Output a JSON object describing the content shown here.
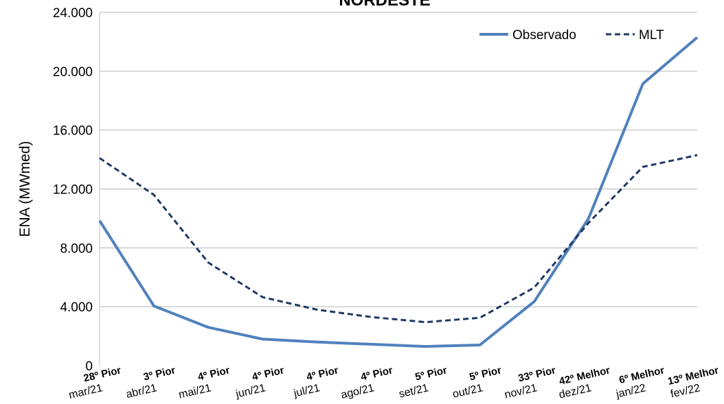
{
  "chart_data": {
    "type": "line",
    "title": "NORDESTE",
    "ylabel": "ENA (MWmed)",
    "xlabel": "",
    "ylim": [
      0,
      24000
    ],
    "yticks": [
      0,
      4000,
      8000,
      12000,
      16000,
      20000,
      24000
    ],
    "ytick_labels": [
      "0",
      "4.000",
      "8.000",
      "12.000",
      "16.000",
      "20.000",
      "24.000"
    ],
    "grid": true,
    "legend_position": "top-right",
    "categories": [
      "mar/21",
      "abr/21",
      "mai/21",
      "jun/21",
      "jul/21",
      "ago/21",
      "set/21",
      "out/21",
      "nov/21",
      "dez/21",
      "jan/22",
      "fev/22"
    ],
    "rank_labels": [
      "28º Pior",
      "3º Pior",
      "4º Pior",
      "4º Pior",
      "4º Pior",
      "4º Pior",
      "5º Pior",
      "5º Pior",
      "33º Pior",
      "42º Melhor",
      "6º Melhor",
      "13º Melhor"
    ],
    "series": [
      {
        "name": "Observado",
        "color": "#4f81bd",
        "style": "solid",
        "values": [
          9850,
          4050,
          2600,
          1800,
          1600,
          1450,
          1300,
          1400,
          4350,
          10000,
          19150,
          22300
        ]
      },
      {
        "name": "MLT",
        "color": "#1f3864",
        "style": "dashed",
        "values": [
          14100,
          11600,
          7000,
          4650,
          3800,
          3300,
          2950,
          3250,
          5300,
          9700,
          13500,
          14300
        ]
      }
    ]
  }
}
